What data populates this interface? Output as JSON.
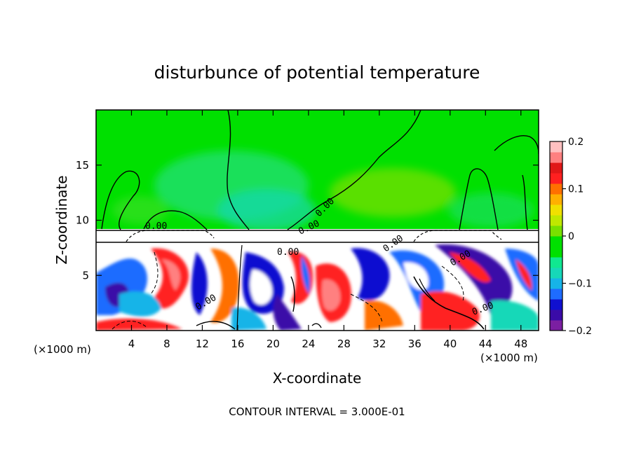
{
  "chart_data": {
    "type": "heatmap",
    "title": "disturbunce of potential temperature",
    "xlabel": "X-coordinate",
    "ylabel": "Z-coordinate",
    "x_unit_left": "(×1000 m)",
    "x_unit_right": "(×1000 m)",
    "xlim": [
      0,
      50
    ],
    "ylim": [
      0,
      20
    ],
    "x_ticks": [
      4,
      8,
      12,
      16,
      20,
      24,
      28,
      32,
      36,
      40,
      44,
      48
    ],
    "x_tick_labels": [
      "4",
      "8",
      "12",
      "16",
      "20",
      "24",
      "28",
      "32",
      "36",
      "40",
      "44",
      "48"
    ],
    "y_ticks": [
      5,
      10,
      15
    ],
    "y_tick_labels": [
      "5",
      "10",
      "15"
    ],
    "colorbar": {
      "min": -0.2,
      "max": 0.2,
      "ticks": [
        0.2,
        0.1,
        0,
        -0.1,
        -0.2
      ],
      "tick_labels": [
        "0.2",
        "0.1",
        "0",
        "−0.1",
        "−0.2"
      ],
      "colors": [
        "#7b1fa2",
        "#3a0ba8",
        "#1010d0",
        "#1e6cff",
        "#16b4e8",
        "#16d8b8",
        "#10e890",
        "#00e000",
        "#00e000",
        "#78e000",
        "#c0e800",
        "#f0e000",
        "#ffb000",
        "#ff7000",
        "#ff2020",
        "#e01818",
        "#ff8080",
        "#ffc0c0"
      ]
    },
    "contour_interval_text": "CONTOUR INTERVAL = 3.000E-01",
    "contour_labels": [
      "0.00",
      "0.00",
      "0.00",
      "0.00",
      "0.00",
      "0.00",
      "0.00",
      "0.00"
    ]
  }
}
